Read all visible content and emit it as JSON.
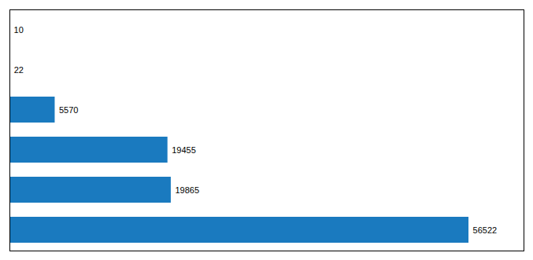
{
  "chart_data": {
    "type": "bar",
    "orientation": "horizontal",
    "categories": [
      null,
      null,
      null,
      null,
      null,
      null
    ],
    "values": [
      56522,
      19865,
      19455,
      5570,
      22,
      10
    ],
    "color": "#1a7abf",
    "xlim": [
      0,
      63304.64
    ],
    "xticks": [],
    "data_labels": true,
    "tick_labels": false,
    "grid": false
  }
}
